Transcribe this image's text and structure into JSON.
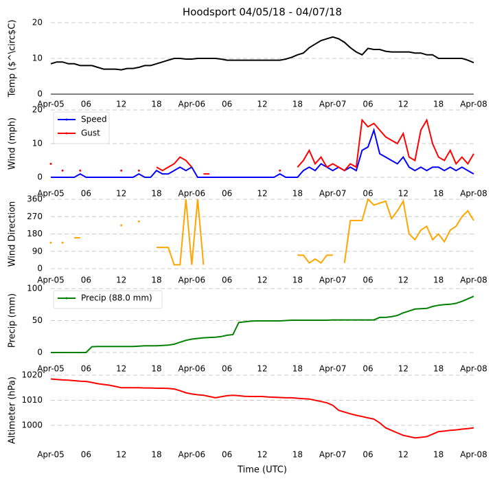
{
  "chart_data": [
    {
      "type": "line",
      "title": "Hoodsport 04/05/18 - 04/07/18",
      "ylabel": "Temp ($^\\circ$C)",
      "axis_line": true,
      "grid": true,
      "xlim": [
        0,
        72
      ],
      "xticks": [
        {
          "value": 0,
          "label": "Apr-05"
        },
        {
          "value": 6,
          "label": "06"
        },
        {
          "value": 12,
          "label": "12"
        },
        {
          "value": 18,
          "label": "18"
        },
        {
          "value": 24,
          "label": "Apr-06"
        },
        {
          "value": 30,
          "label": "06"
        },
        {
          "value": 36,
          "label": "12"
        },
        {
          "value": 42,
          "label": "18"
        },
        {
          "value": 48,
          "label": "Apr-07"
        },
        {
          "value": 54,
          "label": "06"
        },
        {
          "value": 60,
          "label": "12"
        },
        {
          "value": 66,
          "label": "18"
        },
        {
          "value": 72,
          "label": "Apr-08"
        }
      ],
      "ylim": [
        0,
        20
      ],
      "yticks": [
        0,
        10,
        20
      ],
      "x": [
        0,
        1,
        2,
        3,
        4,
        5,
        6,
        7,
        8,
        9,
        10,
        11,
        12,
        13,
        14,
        15,
        16,
        17,
        18,
        19,
        20,
        21,
        22,
        23,
        24,
        25,
        26,
        27,
        28,
        29,
        30,
        31,
        32,
        33,
        34,
        35,
        36,
        37,
        38,
        39,
        40,
        41,
        42,
        43,
        44,
        45,
        46,
        47,
        48,
        49,
        50,
        51,
        52,
        53,
        54,
        55,
        56,
        57,
        58,
        59,
        60,
        61,
        62,
        63,
        64,
        65,
        66,
        67,
        68,
        69,
        70,
        71,
        72
      ],
      "series": [
        {
          "color": "#000000",
          "values": [
            8.5,
            9,
            9,
            8.5,
            8.5,
            8,
            8,
            8,
            7.5,
            7,
            7,
            7,
            6.8,
            7.2,
            7.2,
            7.5,
            8,
            8,
            8.5,
            9,
            9.5,
            10,
            10,
            9.8,
            9.8,
            10,
            10,
            10,
            10,
            9.8,
            9.5,
            9.5,
            9.5,
            9.5,
            9.5,
            9.5,
            9.5,
            9.5,
            9.5,
            9.5,
            9.8,
            10.3,
            11,
            11.5,
            13,
            14,
            15,
            15.5,
            16,
            15.5,
            14.5,
            13,
            11.8,
            11,
            12.8,
            12.5,
            12.5,
            12,
            11.8,
            11.8,
            11.8,
            11.8,
            11.5,
            11.5,
            11,
            11,
            10,
            10,
            10,
            10,
            10,
            9.5,
            8.8
          ]
        }
      ]
    },
    {
      "type": "line",
      "ylabel": "Wind (mph)",
      "legend": "upper left",
      "grid": true,
      "xlim": [
        0,
        72
      ],
      "xticks": [
        {
          "value": 0,
          "label": "Apr-05"
        },
        {
          "value": 6,
          "label": "06"
        },
        {
          "value": 12,
          "label": "12"
        },
        {
          "value": 18,
          "label": "18"
        },
        {
          "value": 24,
          "label": "Apr-06"
        },
        {
          "value": 30,
          "label": "06"
        },
        {
          "value": 36,
          "label": "12"
        },
        {
          "value": 42,
          "label": "18"
        },
        {
          "value": 48,
          "label": "Apr-07"
        },
        {
          "value": 54,
          "label": "06"
        },
        {
          "value": 60,
          "label": "12"
        },
        {
          "value": 66,
          "label": "18"
        },
        {
          "value": 72,
          "label": "Apr-08"
        }
      ],
      "ylim": [
        0,
        20
      ],
      "yticks": [
        0,
        10,
        20
      ],
      "x": [
        0,
        1,
        2,
        3,
        4,
        5,
        6,
        7,
        8,
        9,
        10,
        11,
        12,
        13,
        14,
        15,
        16,
        17,
        18,
        19,
        20,
        21,
        22,
        23,
        24,
        25,
        26,
        27,
        28,
        29,
        30,
        31,
        32,
        33,
        34,
        35,
        36,
        37,
        38,
        39,
        40,
        41,
        42,
        43,
        44,
        45,
        46,
        47,
        48,
        49,
        50,
        51,
        52,
        53,
        54,
        55,
        56,
        57,
        58,
        59,
        60,
        61,
        62,
        63,
        64,
        65,
        66,
        67,
        68,
        69,
        70,
        71,
        72
      ],
      "series": [
        {
          "name": "Speed",
          "color": "#0000ff",
          "values": [
            0,
            0,
            0,
            0,
            0,
            1,
            0,
            0,
            0,
            0,
            0,
            0,
            0,
            0,
            0,
            1,
            0,
            0,
            2,
            1,
            1,
            2,
            3,
            2,
            3,
            0,
            0,
            0,
            0,
            0,
            0,
            0,
            0,
            0,
            0,
            0,
            0,
            0,
            0,
            1,
            0,
            0,
            0,
            2,
            3,
            2,
            4,
            3,
            2,
            3,
            2,
            3,
            2,
            8,
            9,
            14,
            7,
            6,
            5,
            4,
            6,
            3,
            2,
            3,
            2,
            3,
            3,
            2,
            3,
            2,
            3,
            2,
            1
          ]
        },
        {
          "name": "Gust",
          "color": "#ff0000",
          "values": [
            4,
            null,
            2,
            null,
            null,
            2,
            null,
            null,
            null,
            null,
            null,
            null,
            2,
            null,
            null,
            2,
            null,
            null,
            3,
            2,
            3,
            4,
            6,
            5,
            3,
            null,
            1,
            1,
            null,
            null,
            null,
            null,
            null,
            null,
            null,
            null,
            null,
            null,
            null,
            2,
            null,
            null,
            3,
            5,
            8,
            4,
            6,
            3,
            4,
            3,
            2,
            4,
            3,
            17,
            15,
            16,
            14,
            12,
            11,
            10,
            13,
            6,
            5,
            14,
            17,
            10,
            6,
            5,
            8,
            4,
            6,
            4,
            7
          ]
        }
      ]
    },
    {
      "type": "line",
      "ylabel": "Wind Direction",
      "grid": true,
      "xlim": [
        0,
        72
      ],
      "xticks": [
        {
          "value": 0,
          "label": "Apr-05"
        },
        {
          "value": 6,
          "label": "06"
        },
        {
          "value": 12,
          "label": "12"
        },
        {
          "value": 18,
          "label": "18"
        },
        {
          "value": 24,
          "label": "Apr-06"
        },
        {
          "value": 30,
          "label": "06"
        },
        {
          "value": 36,
          "label": "12"
        },
        {
          "value": 42,
          "label": "18"
        },
        {
          "value": 48,
          "label": "Apr-07"
        },
        {
          "value": 54,
          "label": "06"
        },
        {
          "value": 60,
          "label": "12"
        },
        {
          "value": 66,
          "label": "18"
        },
        {
          "value": 72,
          "label": "Apr-08"
        }
      ],
      "ylim": [
        0,
        360
      ],
      "yticks": [
        0,
        90,
        180,
        270,
        360
      ],
      "x": [
        0,
        1,
        2,
        3,
        4,
        5,
        6,
        7,
        8,
        9,
        10,
        11,
        12,
        13,
        14,
        15,
        16,
        17,
        18,
        19,
        20,
        21,
        22,
        23,
        24,
        25,
        26,
        27,
        28,
        29,
        30,
        31,
        32,
        33,
        34,
        35,
        36,
        37,
        38,
        39,
        40,
        41,
        42,
        43,
        44,
        45,
        46,
        47,
        48,
        49,
        50,
        51,
        52,
        53,
        54,
        55,
        56,
        57,
        58,
        59,
        60,
        61,
        62,
        63,
        64,
        65,
        66,
        67,
        68,
        69,
        70,
        71,
        72
      ],
      "series": [
        {
          "color": "#ffa500",
          "values": [
            135,
            null,
            135,
            null,
            160,
            160,
            null,
            null,
            null,
            null,
            null,
            null,
            225,
            null,
            null,
            245,
            null,
            null,
            110,
            110,
            110,
            20,
            20,
            360,
            20,
            360,
            20,
            null,
            null,
            null,
            null,
            null,
            null,
            null,
            null,
            null,
            null,
            null,
            null,
            null,
            null,
            null,
            70,
            70,
            30,
            50,
            30,
            70,
            70,
            null,
            30,
            250,
            250,
            250,
            360,
            330,
            340,
            350,
            260,
            300,
            350,
            180,
            150,
            200,
            220,
            150,
            180,
            140,
            200,
            220,
            270,
            300,
            250
          ]
        }
      ]
    },
    {
      "type": "line",
      "ylabel": "Precip (mm)",
      "legend": "upper left",
      "grid": true,
      "xlim": [
        0,
        72
      ],
      "xticks": [
        {
          "value": 0,
          "label": "Apr-05"
        },
        {
          "value": 6,
          "label": "06"
        },
        {
          "value": 12,
          "label": "12"
        },
        {
          "value": 18,
          "label": "18"
        },
        {
          "value": 24,
          "label": "Apr-06"
        },
        {
          "value": 30,
          "label": "06"
        },
        {
          "value": 36,
          "label": "12"
        },
        {
          "value": 42,
          "label": "18"
        },
        {
          "value": 48,
          "label": "Apr-07"
        },
        {
          "value": 54,
          "label": "06"
        },
        {
          "value": 60,
          "label": "12"
        },
        {
          "value": 66,
          "label": "18"
        },
        {
          "value": 72,
          "label": "Apr-08"
        }
      ],
      "ylim": [
        0,
        100
      ],
      "yticks": [
        0,
        50,
        100
      ],
      "x": [
        0,
        1,
        2,
        3,
        4,
        5,
        6,
        7,
        8,
        9,
        10,
        11,
        12,
        13,
        14,
        15,
        16,
        17,
        18,
        19,
        20,
        21,
        22,
        23,
        24,
        25,
        26,
        27,
        28,
        29,
        30,
        31,
        32,
        33,
        34,
        35,
        36,
        37,
        38,
        39,
        40,
        41,
        42,
        43,
        44,
        45,
        46,
        47,
        48,
        49,
        50,
        51,
        52,
        53,
        54,
        55,
        56,
        57,
        58,
        59,
        60,
        61,
        62,
        63,
        64,
        65,
        66,
        67,
        68,
        69,
        70,
        71,
        72
      ],
      "series": [
        {
          "name": "Precip (88.0 mm)",
          "color": "#008000",
          "values": [
            0,
            0,
            0,
            0,
            0,
            0,
            0,
            9,
            9.5,
            9.5,
            9.5,
            9.5,
            9.5,
            9.5,
            9.5,
            10,
            10.5,
            10.5,
            10.5,
            11,
            11.5,
            13,
            16,
            19,
            21,
            22,
            23,
            23.5,
            24,
            25,
            27,
            28,
            47,
            48,
            49,
            49.5,
            49.5,
            49.5,
            49.5,
            49.5,
            50,
            50.5,
            50.5,
            50.5,
            50.5,
            50.5,
            50.5,
            50.5,
            51,
            51,
            51,
            51,
            51,
            51,
            51,
            51,
            55,
            55,
            56,
            58,
            62,
            65,
            68,
            68.5,
            69,
            72,
            74,
            75,
            75.5,
            77,
            80,
            84,
            88
          ]
        }
      ]
    },
    {
      "type": "line",
      "ylabel": "Altimeter (hPa)",
      "xlabel": "Time (UTC)",
      "grid": true,
      "xlim": [
        0,
        72
      ],
      "xticks": [
        {
          "value": 0,
          "label": "Apr-05"
        },
        {
          "value": 6,
          "label": "06"
        },
        {
          "value": 12,
          "label": "12"
        },
        {
          "value": 18,
          "label": "18"
        },
        {
          "value": 24,
          "label": "Apr-06"
        },
        {
          "value": 30,
          "label": "06"
        },
        {
          "value": 36,
          "label": "12"
        },
        {
          "value": 42,
          "label": "18"
        },
        {
          "value": 48,
          "label": "Apr-07"
        },
        {
          "value": 54,
          "label": "06"
        },
        {
          "value": 60,
          "label": "12"
        },
        {
          "value": 66,
          "label": "18"
        },
        {
          "value": 72,
          "label": "Apr-08"
        }
      ],
      "ylim": [
        990,
        1022
      ],
      "yticks": [
        1000,
        1010,
        1020
      ],
      "x": [
        0,
        1,
        2,
        3,
        4,
        5,
        6,
        7,
        8,
        9,
        10,
        11,
        12,
        13,
        14,
        15,
        16,
        17,
        18,
        19,
        20,
        21,
        22,
        23,
        24,
        25,
        26,
        27,
        28,
        29,
        30,
        31,
        32,
        33,
        34,
        35,
        36,
        37,
        38,
        39,
        40,
        41,
        42,
        43,
        44,
        45,
        46,
        47,
        48,
        49,
        50,
        51,
        52,
        53,
        54,
        55,
        56,
        57,
        58,
        59,
        60,
        61,
        62,
        63,
        64,
        65,
        66,
        67,
        68,
        69,
        70,
        71,
        72
      ],
      "series": [
        {
          "color": "#ff0000",
          "values": [
            1018.5,
            1018.3,
            1018.1,
            1018,
            1017.8,
            1017.6,
            1017.5,
            1017.1,
            1016.6,
            1016.3,
            1016,
            1015.5,
            1015,
            1015,
            1015,
            1015,
            1014.9,
            1014.9,
            1014.8,
            1014.8,
            1014.7,
            1014.5,
            1013.8,
            1013,
            1012.5,
            1012.2,
            1012,
            1011.5,
            1011,
            1011.4,
            1011.8,
            1012,
            1011.8,
            1011.6,
            1011.5,
            1011.5,
            1011.5,
            1011.3,
            1011.2,
            1011.1,
            1011,
            1011,
            1010.8,
            1010.6,
            1010.5,
            1010,
            1009.5,
            1009,
            1008,
            1006,
            1005.3,
            1004.6,
            1004,
            1003.5,
            1003,
            1002.5,
            1001,
            999,
            998,
            997,
            996,
            995.5,
            995,
            995.2,
            995.5,
            996.5,
            997.5,
            997.7,
            998,
            998.2,
            998.5,
            998.7,
            999
          ]
        }
      ]
    }
  ]
}
